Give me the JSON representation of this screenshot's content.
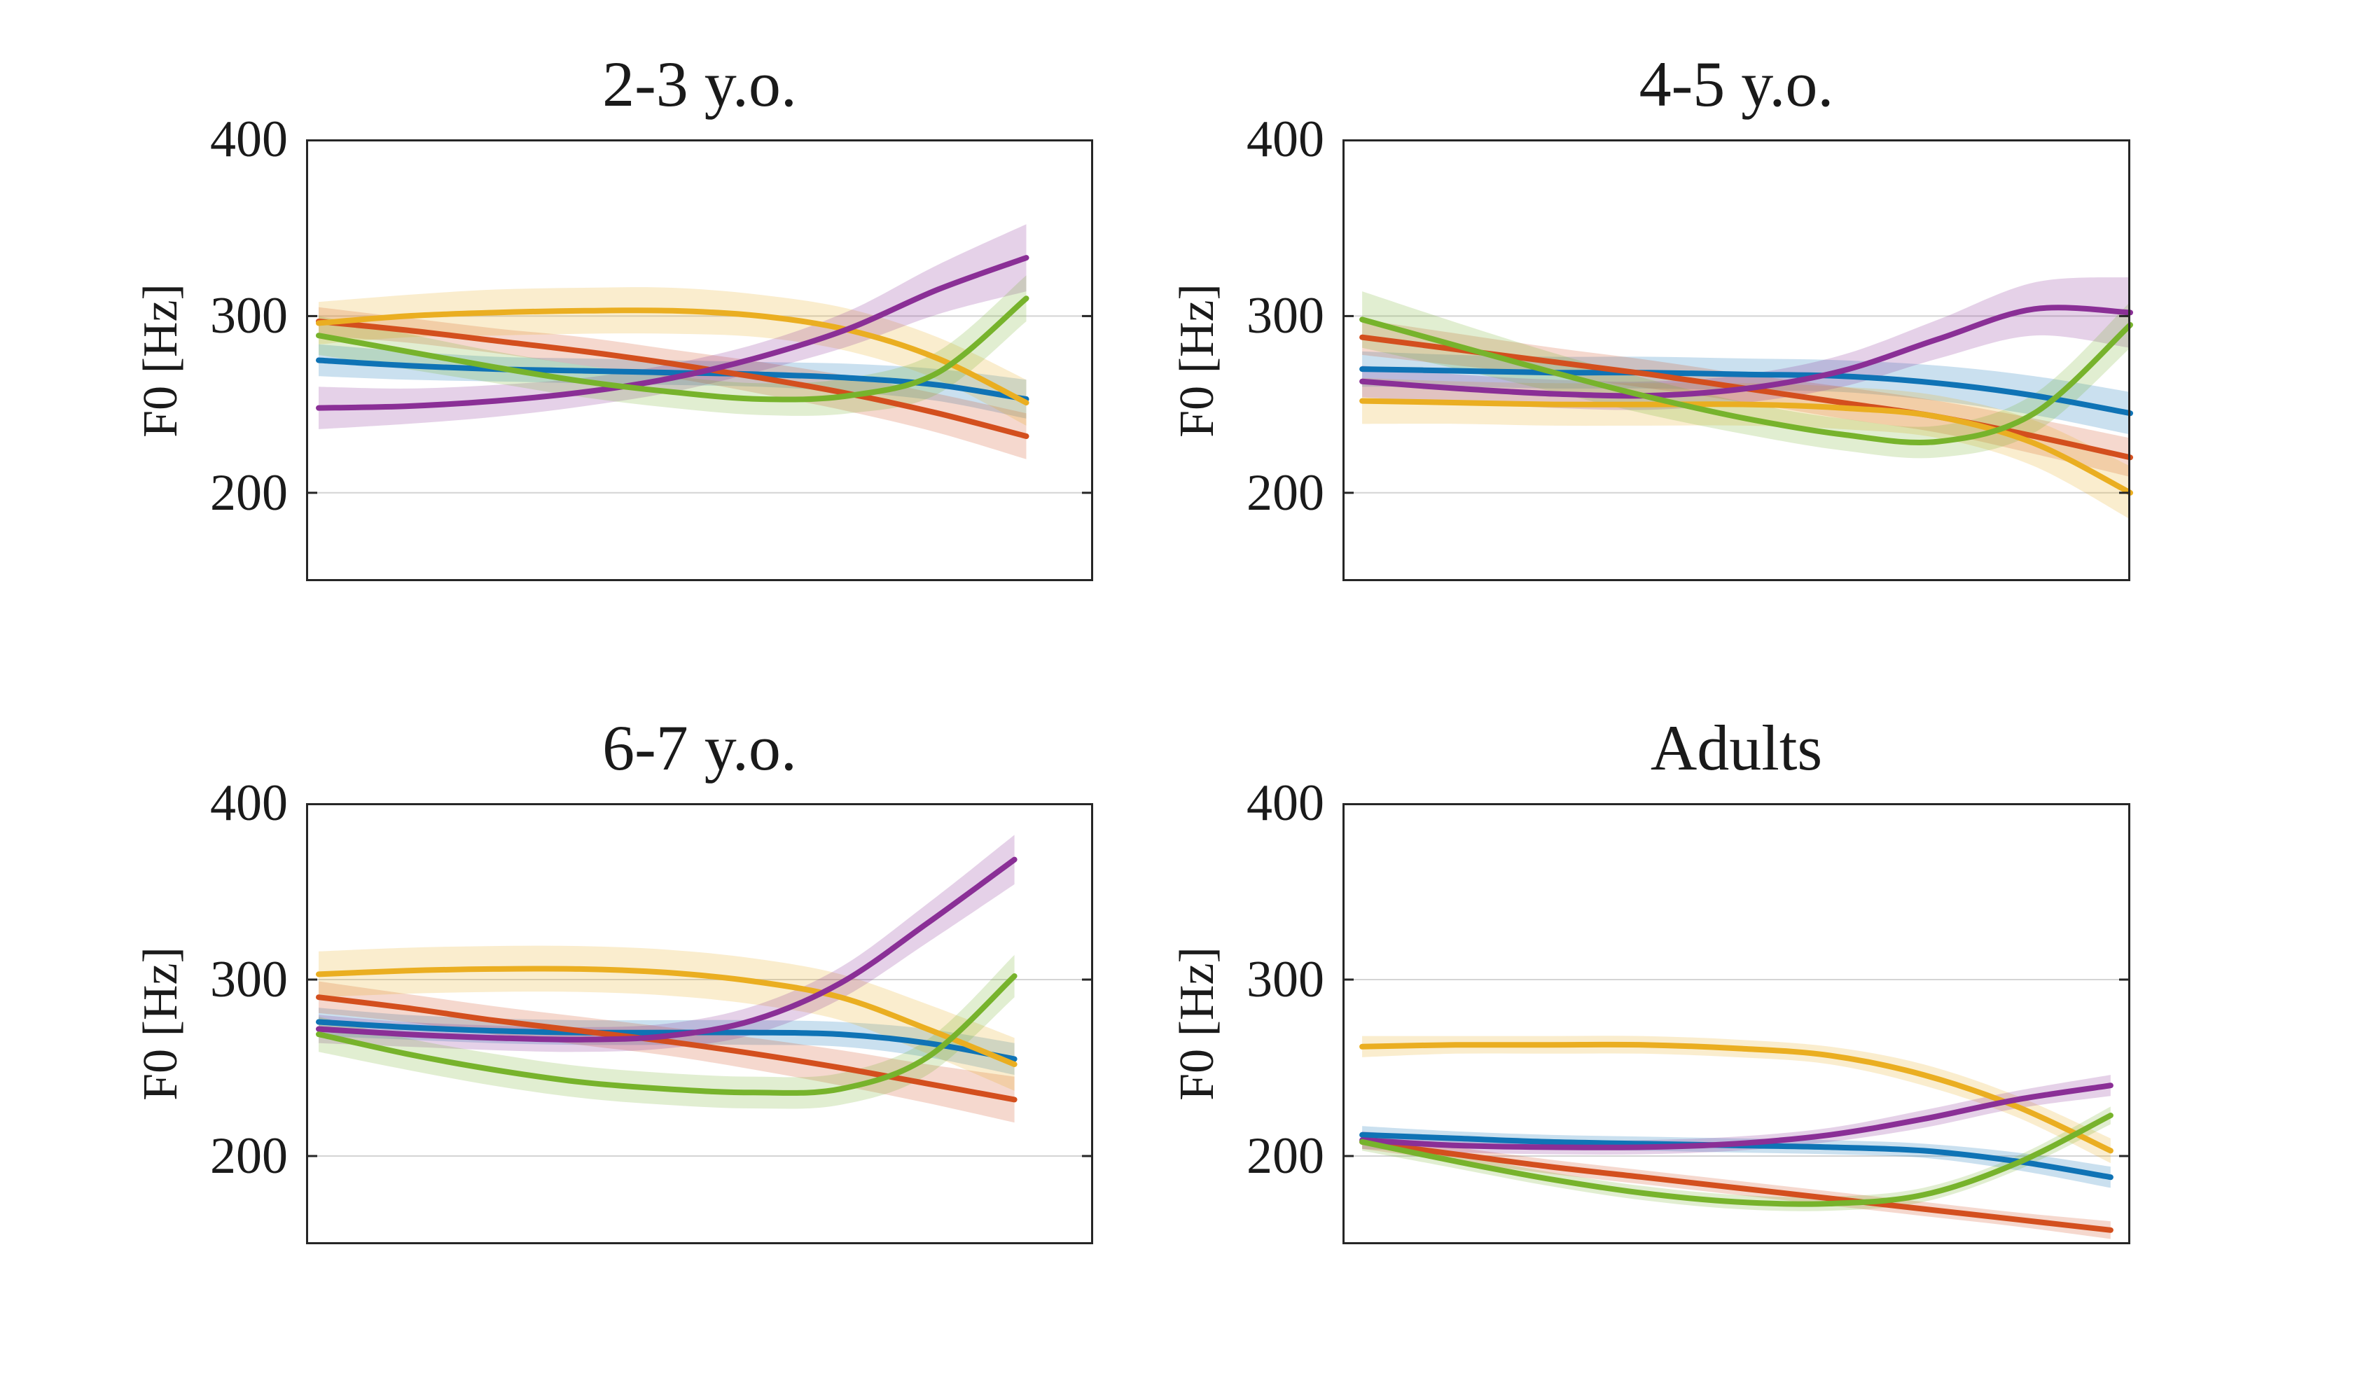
{
  "figure": {
    "background": "#ffffff",
    "text_color": "#1a1a1a",
    "axis_color": "#262626",
    "grid_color": "#d4d4d4",
    "band_opacity": 0.22,
    "line_width": 8,
    "ylabel": "F0 [Hz]"
  },
  "chart_data": [
    {
      "type": "line",
      "title": "2-3 y.o.",
      "ylabel": "F0 [Hz]",
      "ylim": [
        150,
        400
      ],
      "yticks": [
        200,
        300,
        400
      ],
      "xticklabels": [],
      "legend": "none",
      "grid": "horizontal",
      "x": [
        0,
        0.125,
        0.25,
        0.375,
        0.5,
        0.625,
        0.75,
        0.875,
        1
      ],
      "x_start_frac": 0.016,
      "x_end_frac": 0.915,
      "series": [
        {
          "name": "blue",
          "color": "#0f73b5",
          "values": [
            275,
            272,
            270,
            269,
            268,
            267,
            265,
            261,
            253
          ],
          "band_halfwidth": [
            9,
            8,
            7,
            7,
            7,
            7,
            8,
            9,
            11
          ]
        },
        {
          "name": "red",
          "color": "#d34f1e",
          "values": [
            297,
            292,
            286,
            280,
            273,
            265,
            256,
            245,
            232
          ],
          "band_halfwidth": [
            8,
            7,
            7,
            8,
            8,
            9,
            10,
            11,
            13
          ]
        },
        {
          "name": "gold",
          "color": "#eaae21",
          "values": [
            296,
            300,
            302,
            303,
            303,
            300,
            292,
            276,
            251
          ],
          "band_halfwidth": [
            12,
            12,
            13,
            13,
            13,
            12,
            12,
            12,
            13
          ]
        },
        {
          "name": "purple",
          "color": "#8a2f96",
          "values": [
            248,
            249,
            252,
            257,
            265,
            277,
            293,
            315,
            333
          ],
          "band_halfwidth": [
            12,
            10,
            9,
            8,
            8,
            8,
            10,
            14,
            19
          ]
        },
        {
          "name": "green",
          "color": "#77b32c",
          "values": [
            289,
            280,
            271,
            263,
            257,
            253,
            255,
            268,
            310
          ],
          "band_halfwidth": [
            11,
            10,
            9,
            9,
            9,
            9,
            10,
            12,
            13
          ]
        }
      ]
    },
    {
      "type": "line",
      "title": "4-5 y.o.",
      "ylabel": "F0 [Hz]",
      "ylim": [
        150,
        400
      ],
      "yticks": [
        200,
        300,
        400
      ],
      "xticklabels": [],
      "legend": "none",
      "grid": "horizontal",
      "x": [
        0,
        0.125,
        0.25,
        0.375,
        0.5,
        0.625,
        0.75,
        0.875,
        1
      ],
      "x_start_frac": 0.025,
      "x_end_frac": 1.0,
      "series": [
        {
          "name": "blue",
          "color": "#0f73b5",
          "values": [
            270,
            269,
            268,
            268,
            267,
            266,
            262,
            255,
            245
          ],
          "band_halfwidth": [
            10,
            9,
            9,
            9,
            9,
            9,
            10,
            11,
            12
          ]
        },
        {
          "name": "red",
          "color": "#d34f1e",
          "values": [
            288,
            281,
            274,
            267,
            259,
            251,
            243,
            232,
            220
          ],
          "band_halfwidth": [
            10,
            9,
            8,
            8,
            8,
            9,
            9,
            10,
            11
          ]
        },
        {
          "name": "gold",
          "color": "#eaae21",
          "values": [
            252,
            251,
            250,
            250,
            250,
            248,
            243,
            228,
            200
          ],
          "band_halfwidth": [
            13,
            12,
            12,
            12,
            12,
            12,
            12,
            13,
            15
          ]
        },
        {
          "name": "purple",
          "color": "#8a2f96",
          "values": [
            263,
            259,
            256,
            255,
            259,
            269,
            287,
            304,
            302
          ],
          "band_halfwidth": [
            9,
            8,
            8,
            8,
            8,
            9,
            11,
            15,
            20
          ]
        },
        {
          "name": "green",
          "color": "#77b32c",
          "values": [
            298,
            283,
            268,
            254,
            242,
            233,
            229,
            245,
            295
          ],
          "band_halfwidth": [
            16,
            13,
            11,
            10,
            9,
            9,
            9,
            11,
            13
          ]
        }
      ]
    },
    {
      "type": "line",
      "title": "6-7 y.o.",
      "ylabel": "F0 [Hz]",
      "ylim": [
        150,
        400
      ],
      "yticks": [
        200,
        300,
        400
      ],
      "xticklabels": [],
      "legend": "none",
      "grid": "horizontal",
      "x": [
        0,
        0.125,
        0.25,
        0.375,
        0.5,
        0.625,
        0.75,
        0.875,
        1
      ],
      "x_start_frac": 0.016,
      "x_end_frac": 0.9,
      "series": [
        {
          "name": "blue",
          "color": "#0f73b5",
          "values": [
            276,
            273,
            271,
            270,
            270,
            270,
            269,
            264,
            255
          ],
          "band_halfwidth": [
            8,
            7,
            7,
            7,
            7,
            7,
            7,
            8,
            9
          ]
        },
        {
          "name": "red",
          "color": "#d34f1e",
          "values": [
            290,
            284,
            277,
            271,
            265,
            258,
            250,
            241,
            232
          ],
          "band_halfwidth": [
            9,
            8,
            8,
            8,
            8,
            9,
            10,
            11,
            13
          ]
        },
        {
          "name": "gold",
          "color": "#eaae21",
          "values": [
            303,
            305,
            306,
            306,
            304,
            299,
            290,
            272,
            252
          ],
          "band_halfwidth": [
            13,
            13,
            13,
            13,
            13,
            13,
            13,
            14,
            15
          ]
        },
        {
          "name": "purple",
          "color": "#8a2f96",
          "values": [
            272,
            269,
            267,
            266,
            268,
            277,
            298,
            332,
            368
          ],
          "band_halfwidth": [
            8,
            7,
            7,
            7,
            7,
            8,
            9,
            11,
            14
          ]
        },
        {
          "name": "green",
          "color": "#77b32c",
          "values": [
            269,
            258,
            249,
            242,
            238,
            236,
            238,
            256,
            302
          ],
          "band_halfwidth": [
            10,
            9,
            9,
            9,
            9,
            9,
            9,
            10,
            12
          ]
        }
      ]
    },
    {
      "type": "line",
      "title": "Adults",
      "ylabel": "F0 [Hz]",
      "ylim": [
        150,
        400
      ],
      "yticks": [
        200,
        300,
        400
      ],
      "xticklabels": [],
      "legend": "none",
      "grid": "horizontal",
      "x": [
        0,
        0.125,
        0.25,
        0.375,
        0.5,
        0.625,
        0.75,
        0.875,
        1
      ],
      "x_start_frac": 0.025,
      "x_end_frac": 0.975,
      "series": [
        {
          "name": "blue",
          "color": "#0f73b5",
          "values": [
            212,
            210,
            208,
            207,
            206,
            205,
            203,
            197,
            188
          ],
          "band_halfwidth": [
            5,
            4,
            4,
            4,
            4,
            4,
            4,
            5,
            6
          ]
        },
        {
          "name": "red",
          "color": "#d34f1e",
          "values": [
            208,
            201,
            194,
            188,
            182,
            176,
            170,
            164,
            158
          ],
          "band_halfwidth": [
            4,
            4,
            4,
            4,
            4,
            4,
            4,
            4,
            5
          ]
        },
        {
          "name": "gold",
          "color": "#eaae21",
          "values": [
            262,
            263,
            263,
            263,
            261,
            257,
            246,
            228,
            203
          ],
          "band_halfwidth": [
            6,
            5,
            5,
            5,
            5,
            5,
            6,
            6,
            7
          ]
        },
        {
          "name": "purple",
          "color": "#8a2f96",
          "values": [
            209,
            206,
            205,
            205,
            207,
            212,
            221,
            232,
            240
          ],
          "band_halfwidth": [
            5,
            4,
            4,
            4,
            4,
            4,
            5,
            5,
            6
          ]
        },
        {
          "name": "green",
          "color": "#77b32c",
          "values": [
            208,
            197,
            187,
            179,
            174,
            173,
            178,
            196,
            223
          ],
          "band_halfwidth": [
            5,
            4,
            4,
            4,
            4,
            4,
            4,
            4,
            5
          ]
        }
      ]
    }
  ]
}
